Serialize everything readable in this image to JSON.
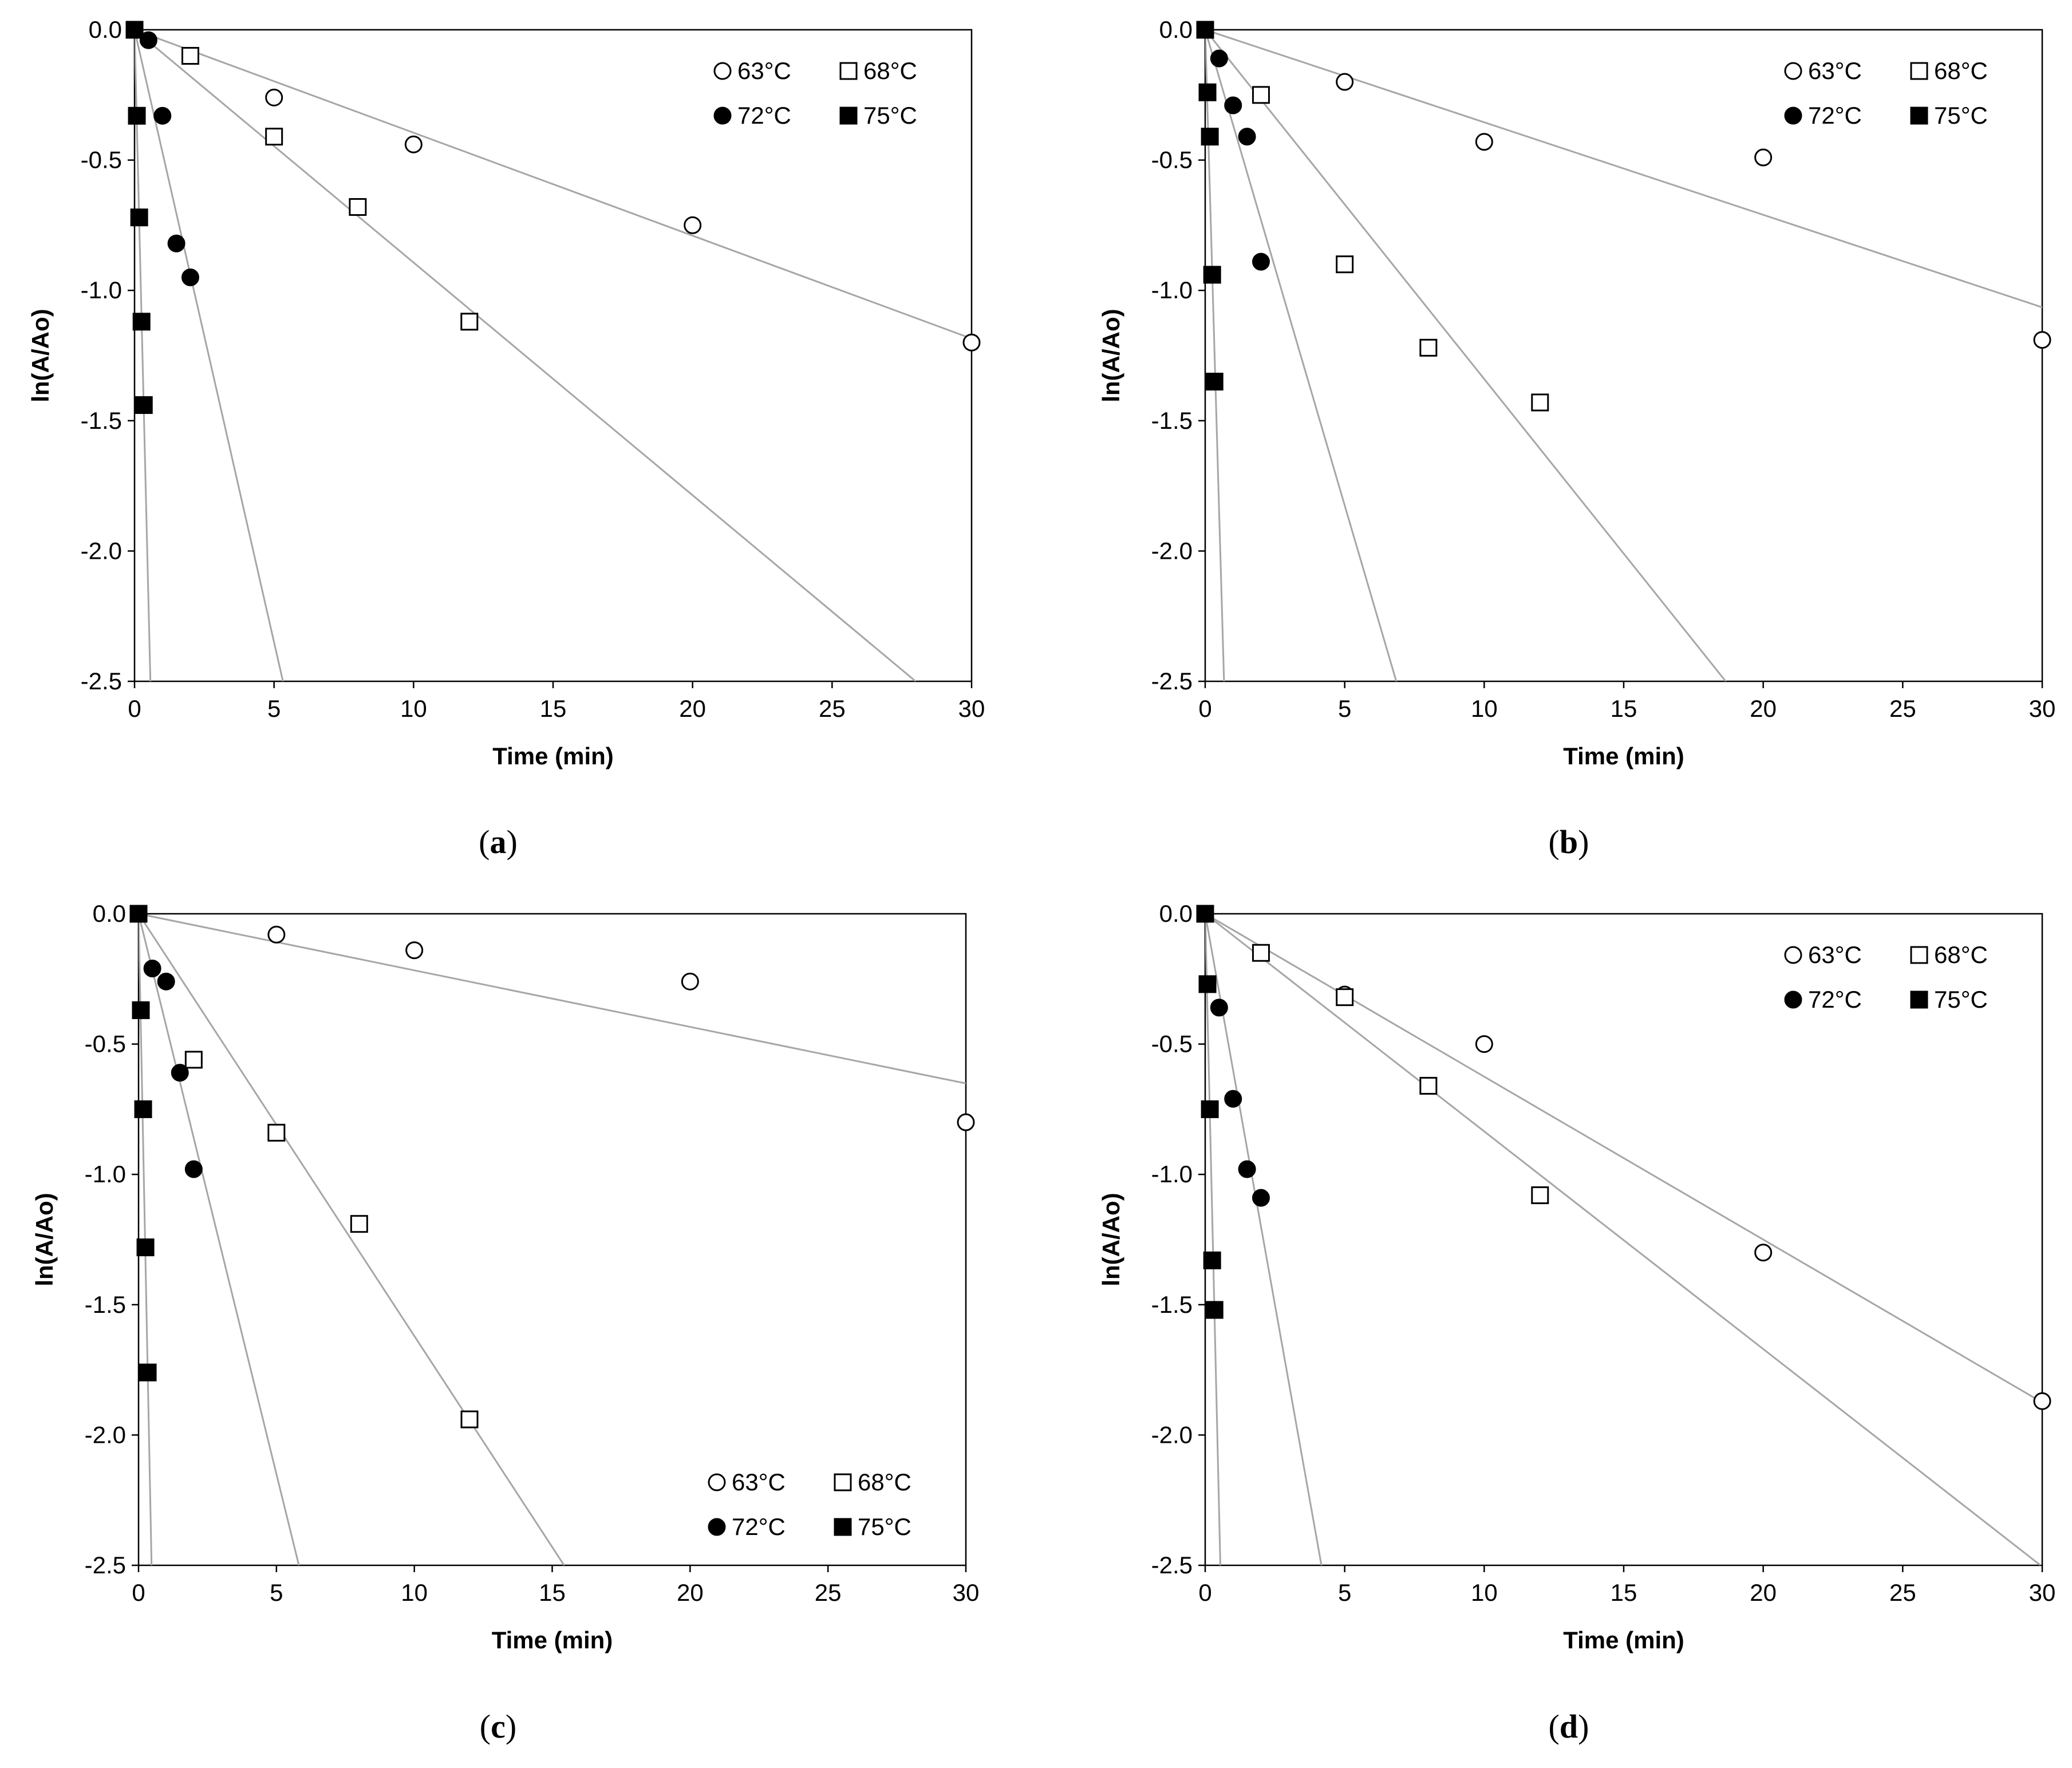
{
  "figure": {
    "panels": [
      {
        "caption_letter": "a"
      },
      {
        "caption_letter": "b"
      },
      {
        "caption_letter": "c"
      },
      {
        "caption_letter": "d"
      }
    ]
  },
  "chart_data": [
    {
      "panel": "a",
      "type": "scatter",
      "title": "",
      "xlabel": "Time (min)",
      "ylabel": "ln(A/Ao)",
      "xlim": [
        0,
        30
      ],
      "ylim": [
        -2.5,
        0.0
      ],
      "xticks": [
        "0",
        "5",
        "10",
        "15",
        "20",
        "25",
        "30"
      ],
      "yticks": [
        "0.0",
        "-0.5",
        "-1.0",
        "-1.5",
        "-2.0",
        "-2.5"
      ],
      "legend_position": "top-right",
      "series": [
        {
          "name": "63°C",
          "marker": "open-circle",
          "x": [
            0,
            5,
            10,
            20,
            30
          ],
          "y": [
            0.0,
            -0.26,
            -0.44,
            -0.75,
            -1.2
          ],
          "fit_slope": -0.0395
        },
        {
          "name": "68°C",
          "marker": "open-square",
          "x": [
            0,
            2,
            5,
            8,
            12
          ],
          "y": [
            0.0,
            -0.1,
            -0.41,
            -0.68,
            -1.12
          ],
          "fit_slope": -0.0893
        },
        {
          "name": "72°C",
          "marker": "filled-circle",
          "x": [
            0,
            0.5,
            1,
            1.5,
            2
          ],
          "y": [
            0.0,
            -0.04,
            -0.33,
            -0.82,
            -0.95
          ],
          "fit_slope": -0.47
        },
        {
          "name": "75°C",
          "marker": "filled-square",
          "x": [
            0,
            0.083,
            0.167,
            0.25,
            0.333
          ],
          "y": [
            0.0,
            -0.33,
            -0.72,
            -1.12,
            -1.44
          ],
          "fit_slope": -4.4
        }
      ]
    },
    {
      "panel": "b",
      "type": "scatter",
      "title": "",
      "xlabel": "Time (min)",
      "ylabel": "ln(A/Ao)",
      "xlim": [
        0,
        30
      ],
      "ylim": [
        -2.5,
        0.0
      ],
      "xticks": [
        "0",
        "5",
        "10",
        "15",
        "20",
        "25",
        "30"
      ],
      "yticks": [
        "0.0",
        "-0.5",
        "-1.0",
        "-1.5",
        "-2.0",
        "-2.5"
      ],
      "legend_position": "top-right",
      "series": [
        {
          "name": "63°C",
          "marker": "open-circle",
          "x": [
            0,
            5,
            10,
            20,
            30
          ],
          "y": [
            0.0,
            -0.2,
            -0.43,
            -0.49,
            -1.19
          ],
          "fit_slope": -0.0355
        },
        {
          "name": "68°C",
          "marker": "open-square",
          "x": [
            0,
            2,
            5,
            8,
            12
          ],
          "y": [
            0.0,
            -0.25,
            -0.9,
            -1.22,
            -1.43
          ],
          "fit_slope": -0.134
        },
        {
          "name": "72°C",
          "marker": "filled-circle",
          "x": [
            0,
            0.5,
            1,
            1.5,
            2
          ],
          "y": [
            0.0,
            -0.11,
            -0.29,
            -0.41,
            -0.89
          ],
          "fit_slope": -0.365
        },
        {
          "name": "75°C",
          "marker": "filled-square",
          "x": [
            0,
            0.083,
            0.167,
            0.25,
            0.333
          ],
          "y": [
            0.0,
            -0.24,
            -0.41,
            -0.94,
            -1.35
          ],
          "fit_slope": -3.7
        }
      ]
    },
    {
      "panel": "c",
      "type": "scatter",
      "title": "",
      "xlabel": "Time (min)",
      "ylabel": "ln(A/Ao)",
      "xlim": [
        0,
        30
      ],
      "ylim": [
        -2.5,
        0.0
      ],
      "xticks": [
        "0",
        "5",
        "10",
        "15",
        "20",
        "25",
        "30"
      ],
      "yticks": [
        "0.0",
        "-0.5",
        "-1.0",
        "-1.5",
        "-2.0",
        "-2.5"
      ],
      "legend_position": "bottom-right",
      "series": [
        {
          "name": "63°C",
          "marker": "open-circle",
          "x": [
            0,
            5,
            10,
            20,
            30
          ],
          "y": [
            0.0,
            -0.08,
            -0.14,
            -0.26,
            -0.8
          ],
          "fit_slope": -0.0217
        },
        {
          "name": "68°C",
          "marker": "open-square",
          "x": [
            0,
            2,
            5,
            8,
            12
          ],
          "y": [
            0.0,
            -0.56,
            -0.84,
            -1.19,
            -1.94
          ],
          "fit_slope": -0.162
        },
        {
          "name": "72°C",
          "marker": "filled-circle",
          "x": [
            0,
            0.5,
            1,
            1.5,
            2
          ],
          "y": [
            0.0,
            -0.21,
            -0.26,
            -0.61,
            -0.98
          ],
          "fit_slope": -0.43
        },
        {
          "name": "75°C",
          "marker": "filled-square",
          "x": [
            0,
            0.083,
            0.167,
            0.25,
            0.333
          ],
          "y": [
            0.0,
            -0.37,
            -0.75,
            -1.28,
            -1.76
          ],
          "fit_slope": -5.3
        }
      ]
    },
    {
      "panel": "d",
      "type": "scatter",
      "title": "",
      "xlabel": "Time (min)",
      "ylabel": "ln(A/Ao)",
      "xlim": [
        0,
        30
      ],
      "ylim": [
        -2.5,
        0.0
      ],
      "xticks": [
        "0",
        "5",
        "10",
        "15",
        "20",
        "25",
        "30"
      ],
      "yticks": [
        "0.0",
        "-0.5",
        "-1.0",
        "-1.5",
        "-2.0",
        "-2.5"
      ],
      "legend_position": "top-right",
      "series": [
        {
          "name": "63°C",
          "marker": "open-circle",
          "x": [
            0,
            5,
            10,
            20,
            30
          ],
          "y": [
            0.0,
            -0.31,
            -0.5,
            -1.3,
            -1.87
          ],
          "fit_slope": -0.0625
        },
        {
          "name": "68°C",
          "marker": "open-square",
          "x": [
            0,
            2,
            5,
            8,
            12
          ],
          "y": [
            0.0,
            -0.15,
            -0.32,
            -0.66,
            -1.08
          ],
          "fit_slope": -0.0835
        },
        {
          "name": "72°C",
          "marker": "filled-circle",
          "x": [
            0,
            0.5,
            1,
            1.5,
            2
          ],
          "y": [
            0.0,
            -0.36,
            -0.71,
            -0.98,
            -1.09
          ],
          "fit_slope": -0.6
        },
        {
          "name": "75°C",
          "marker": "filled-square",
          "x": [
            0,
            0.083,
            0.167,
            0.25,
            0.333
          ],
          "y": [
            0.0,
            -0.27,
            -0.75,
            -1.33,
            -1.52
          ],
          "fit_slope": -4.6
        }
      ]
    }
  ]
}
